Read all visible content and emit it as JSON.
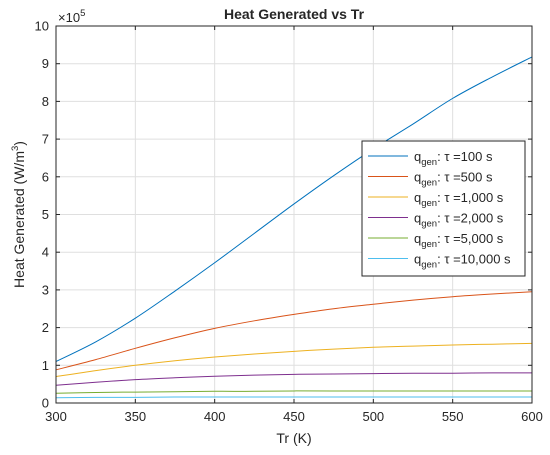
{
  "chart_data": {
    "type": "line",
    "title": "Heat Generated vs Tr",
    "xlabel": "Tr (K)",
    "ylabel": {
      "main": "Heat Generated (W/m",
      "sup": "3",
      "close": ")"
    },
    "exponent": {
      "prefix": "×10",
      "power": "5"
    },
    "xlim": [
      300,
      600
    ],
    "ylim": [
      0,
      10
    ],
    "xticks": [
      "300",
      "350",
      "400",
      "450",
      "500",
      "550",
      "600"
    ],
    "yticks": [
      "0",
      "1",
      "2",
      "3",
      "4",
      "5",
      "6",
      "7",
      "8",
      "9",
      "10"
    ],
    "grid": true,
    "legend_position": "right",
    "x": [
      300,
      325,
      350,
      375,
      400,
      425,
      450,
      475,
      500,
      525,
      550,
      575,
      600
    ],
    "series": [
      {
        "name": {
          "main": "q",
          "sub": "gen",
          "rest": ": τ =100 s"
        },
        "color": "#0072BD",
        "values": [
          1.1,
          1.62,
          2.25,
          2.97,
          3.72,
          4.5,
          5.28,
          6.03,
          6.74,
          7.4,
          8.08,
          8.65,
          9.18
        ]
      },
      {
        "name": {
          "main": "q",
          "sub": "gen",
          "rest": ": τ =500 s"
        },
        "color": "#D95319",
        "values": [
          0.88,
          1.15,
          1.45,
          1.73,
          1.98,
          2.18,
          2.35,
          2.5,
          2.62,
          2.73,
          2.82,
          2.89,
          2.95
        ]
      },
      {
        "name": {
          "main": "q",
          "sub": "gen",
          "rest": ": τ =1,000 s"
        },
        "color": "#EDB120",
        "values": [
          0.7,
          0.86,
          1.0,
          1.12,
          1.22,
          1.3,
          1.37,
          1.43,
          1.48,
          1.51,
          1.54,
          1.56,
          1.58
        ]
      },
      {
        "name": {
          "main": "q",
          "sub": "gen",
          "rest": ": τ =2,000 s"
        },
        "color": "#7E2F8E",
        "values": [
          0.47,
          0.55,
          0.62,
          0.67,
          0.71,
          0.74,
          0.76,
          0.77,
          0.78,
          0.79,
          0.79,
          0.8,
          0.8
        ]
      },
      {
        "name": {
          "main": "q",
          "sub": "gen",
          "rest": ": τ =5,000 s"
        },
        "color": "#77AC30",
        "values": [
          0.26,
          0.28,
          0.29,
          0.3,
          0.31,
          0.31,
          0.32,
          0.32,
          0.32,
          0.32,
          0.32,
          0.32,
          0.32
        ]
      },
      {
        "name": {
          "main": "q",
          "sub": "gen",
          "rest": ": τ =10,000 s"
        },
        "color": "#4DBEEE",
        "values": [
          0.14,
          0.15,
          0.15,
          0.16,
          0.16,
          0.16,
          0.16,
          0.16,
          0.16,
          0.16,
          0.16,
          0.16,
          0.16
        ]
      }
    ]
  }
}
